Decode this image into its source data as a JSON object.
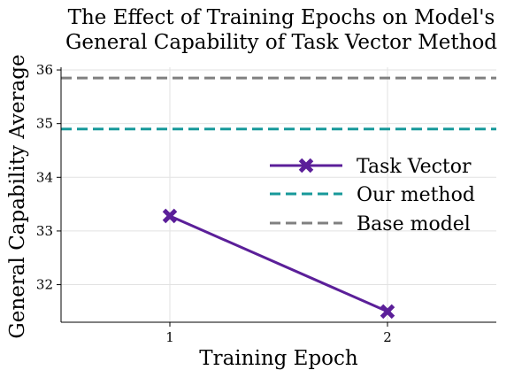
{
  "chart_data": {
    "type": "line",
    "title_lines": [
      "The Effect of Training Epochs on Model's",
      "General Capability of Task Vector Method"
    ],
    "xlabel": "Training Epoch",
    "ylabel": "General Capability Average",
    "x_ticks": [
      1,
      2
    ],
    "y_ticks": [
      32,
      33,
      34,
      35,
      36
    ],
    "xlim": [
      0.5,
      2.5
    ],
    "ylim": [
      31.3,
      36.05
    ],
    "grid": true,
    "legend_position": "center-right",
    "series": [
      {
        "name": "Task Vector",
        "kind": "line-marker",
        "marker": "x",
        "color": "#5b1f99",
        "x": [
          1,
          2
        ],
        "y": [
          33.28,
          31.5
        ]
      },
      {
        "name": "Our method",
        "kind": "hline",
        "style": "dashed",
        "color": "#17999a",
        "y": 34.9
      },
      {
        "name": "Base model",
        "kind": "hline",
        "style": "dashed",
        "color": "#808080",
        "y": 35.85
      }
    ]
  }
}
